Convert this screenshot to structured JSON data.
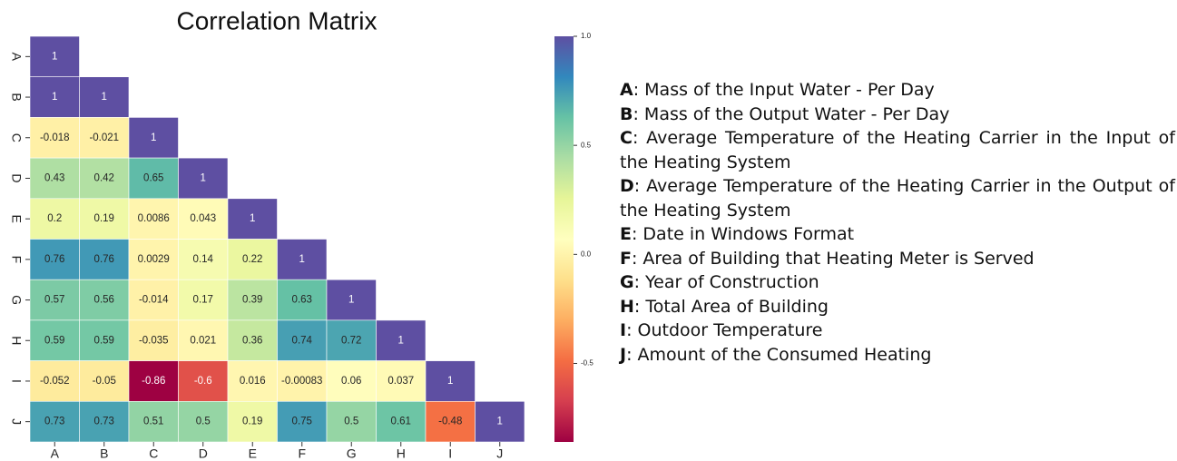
{
  "chart_data": {
    "type": "heatmap",
    "title": "Correlation Matrix",
    "x_categories": [
      "A",
      "B",
      "C",
      "D",
      "E",
      "F",
      "G",
      "H",
      "I",
      "J"
    ],
    "y_categories": [
      "A",
      "B",
      "C",
      "D",
      "E",
      "F",
      "G",
      "H",
      "I",
      "J"
    ],
    "z": [
      [
        1,
        null,
        null,
        null,
        null,
        null,
        null,
        null,
        null,
        null
      ],
      [
        1,
        1,
        null,
        null,
        null,
        null,
        null,
        null,
        null,
        null
      ],
      [
        -0.018,
        -0.021,
        1,
        null,
        null,
        null,
        null,
        null,
        null,
        null
      ],
      [
        0.43,
        0.42,
        0.65,
        1,
        null,
        null,
        null,
        null,
        null,
        null
      ],
      [
        0.2,
        0.19,
        0.0086,
        0.043,
        1,
        null,
        null,
        null,
        null,
        null
      ],
      [
        0.76,
        0.76,
        0.0029,
        0.14,
        0.22,
        1,
        null,
        null,
        null,
        null
      ],
      [
        0.57,
        0.56,
        -0.014,
        0.17,
        0.39,
        0.63,
        1,
        null,
        null,
        null
      ],
      [
        0.59,
        0.59,
        -0.035,
        0.021,
        0.36,
        0.74,
        0.72,
        1,
        null,
        null
      ],
      [
        -0.052,
        -0.05,
        -0.86,
        -0.6,
        0.016,
        -0.00083,
        0.06,
        0.037,
        1,
        null
      ],
      [
        0.73,
        0.73,
        0.51,
        0.5,
        0.19,
        0.75,
        0.5,
        0.61,
        -0.48,
        1
      ]
    ],
    "zlim": [
      -0.86,
      1
    ],
    "zticks": [
      {
        "value": -0.5,
        "label": "-0.5"
      },
      {
        "value": 0,
        "label": "0.0"
      },
      {
        "value": 0.5,
        "label": "0.5"
      },
      {
        "value": 1,
        "label": "1.0"
      }
    ],
    "colormap": "Spectral",
    "colormap_colors": [
      "#9e0142",
      "#d53e4f",
      "#f46d43",
      "#fdae61",
      "#fee08b",
      "#ffffbf",
      "#e6f598",
      "#abdda4",
      "#66c2a5",
      "#3288bd",
      "#5e4fa2"
    ]
  },
  "notes": [
    {
      "key": "A",
      "text": ": Mass of the Input Water - Per Day"
    },
    {
      "key": "B",
      "text": ": Mass of the Output Water - Per Day"
    },
    {
      "key": "C",
      "text": ": Average Temperature of the Heating Carrier in the Input of the Heating System"
    },
    {
      "key": "D",
      "text": ": Average Temperature of the Heating Carrier in the Output of the Heating System"
    },
    {
      "key": "E",
      "text": ": Date in Windows Format"
    },
    {
      "key": "F",
      "text": ": Area of Building that Heating Meter is Served"
    },
    {
      "key": "G",
      "text": ": Year of Construction"
    },
    {
      "key": "H",
      "text": ": Total Area of Building"
    },
    {
      "key": "I",
      "text": ": Outdoor Temperature"
    },
    {
      "key": "J",
      "text": ": Amount of the Consumed Heating"
    }
  ]
}
